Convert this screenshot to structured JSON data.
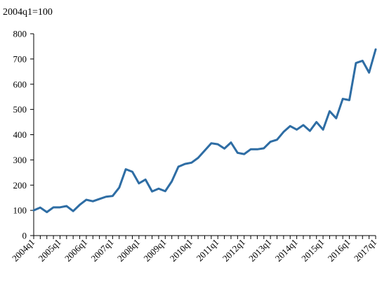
{
  "chart_data": {
    "type": "line",
    "unit_label": "2004q1=100",
    "ylim": [
      0,
      800
    ],
    "y_ticks": [
      0,
      100,
      200,
      300,
      400,
      500,
      600,
      700,
      800
    ],
    "grid": false,
    "legend": "none",
    "x_tick_labels": [
      "2004q1",
      "2005q1",
      "2006q1",
      "2007q1",
      "2008q1",
      "2009q1",
      "2010q1",
      "2011q1",
      "2012q1",
      "2013q1",
      "2014q1",
      "2015q1",
      "2016q1",
      "2017q1"
    ],
    "series": [
      {
        "color": "#2e6da4",
        "values": [
          100,
          111,
          93,
          112,
          112,
          117,
          97,
          122,
          142,
          136,
          145,
          154,
          157,
          190,
          263,
          253,
          207,
          222,
          175,
          186,
          176,
          215,
          273,
          284,
          289,
          308,
          337,
          366,
          362,
          345,
          369,
          328,
          323,
          342,
          342,
          346,
          372,
          380,
          411,
          434,
          420,
          438,
          415,
          450,
          420,
          493,
          465,
          542,
          537,
          684,
          693,
          646,
          738
        ]
      }
    ]
  }
}
